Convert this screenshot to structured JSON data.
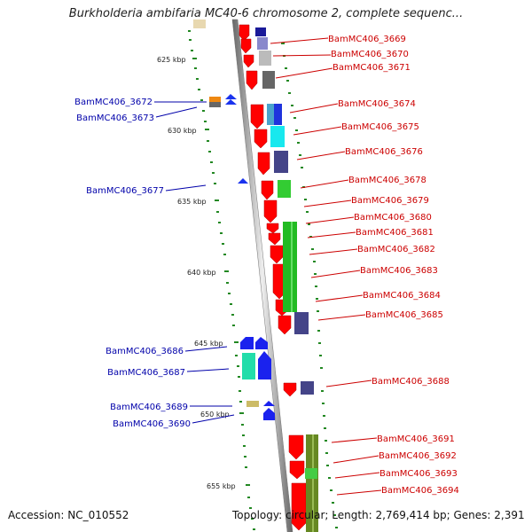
{
  "title": "Burkholderia ambifaria MC40-6 chromosome 2, complete sequenc...",
  "footer": {
    "accession": "Accession: NC_010552",
    "topology": "Topology: circular; Length: 2,769,414 bp; Genes: 2,391"
  },
  "ruler": [
    "625 kbp",
    "630 kbp",
    "635 kbp",
    "640 kbp",
    "645 kbp",
    "650 kbp",
    "655 kbp"
  ],
  "genes_right": [
    "BamMC406_3669",
    "BamMC406_3670",
    "BamMC406_3671",
    "BamMC406_3674",
    "BamMC406_3675",
    "BamMC406_3676",
    "BamMC406_3678",
    "BamMC406_3679",
    "BamMC406_3680",
    "BamMC406_3681",
    "BamMC406_3682",
    "BamMC406_3683",
    "BamMC406_3684",
    "BamMC406_3685",
    "BamMC406_3688",
    "BamMC406_3691",
    "BamMC406_3692",
    "BamMC406_3693",
    "BamMC406_3694"
  ],
  "genes_left": [
    "BamMC406_3672",
    "BamMC406_3673",
    "BamMC406_3677",
    "BamMC406_3686",
    "BamMC406_3687",
    "BamMC406_3689",
    "BamMC406_3690"
  ],
  "colors": {
    "backbone": "#999999",
    "forward_gene": "#ff0000",
    "reverse_gene": "#0000ee",
    "label_right": "#cc0000",
    "label_left": "#0000aa",
    "tick": "#228822"
  }
}
